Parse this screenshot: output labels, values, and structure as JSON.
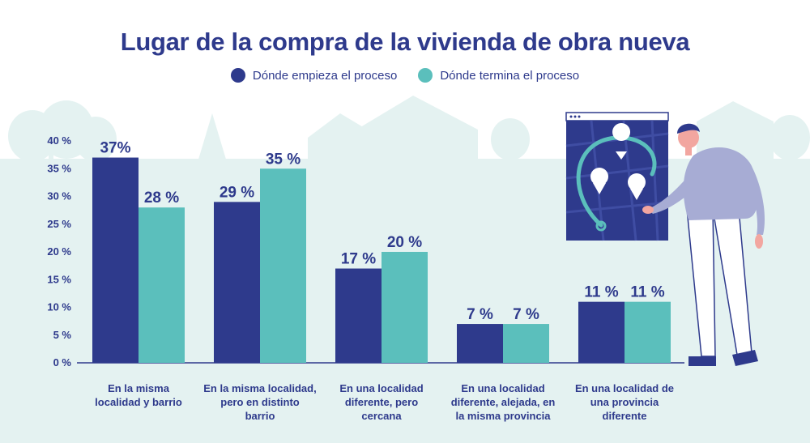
{
  "chart_data": {
    "type": "bar",
    "title": "Lugar de la compra de la vivienda de obra nueva",
    "categories": [
      "En la misma\nlocalidad y barrio",
      "En la misma localidad,\npero en distinto\nbarrio",
      "En una localidad\ndiferente, pero\ncercana",
      "En una localidad\ndiferente, alejada, en\nla misma provincia",
      "En una localidad de\nuna provincia\ndiferente"
    ],
    "series": [
      {
        "name": "Dónde empieza el proceso",
        "color": "#2e3a8c",
        "values": [
          37,
          29,
          17,
          7,
          11
        ],
        "labels": [
          "37%",
          "29 %",
          "17 %",
          "7 %",
          "11 %"
        ]
      },
      {
        "name": "Dónde termina el proceso",
        "color": "#5bbfbc",
        "values": [
          28,
          35,
          20,
          7,
          11
        ],
        "labels": [
          "28 %",
          "35 %",
          "20 %",
          "7 %",
          "11 %"
        ]
      }
    ],
    "ylim": [
      0,
      40
    ],
    "yticks": [
      0,
      5,
      10,
      15,
      20,
      25,
      30,
      35,
      40
    ],
    "ytick_labels": [
      "0 %",
      "5 %",
      "10 %",
      "15 %",
      "20 %",
      "25 %",
      "30 %",
      "35 %",
      "40 %"
    ],
    "legend_position": "top-center",
    "grid": false
  }
}
